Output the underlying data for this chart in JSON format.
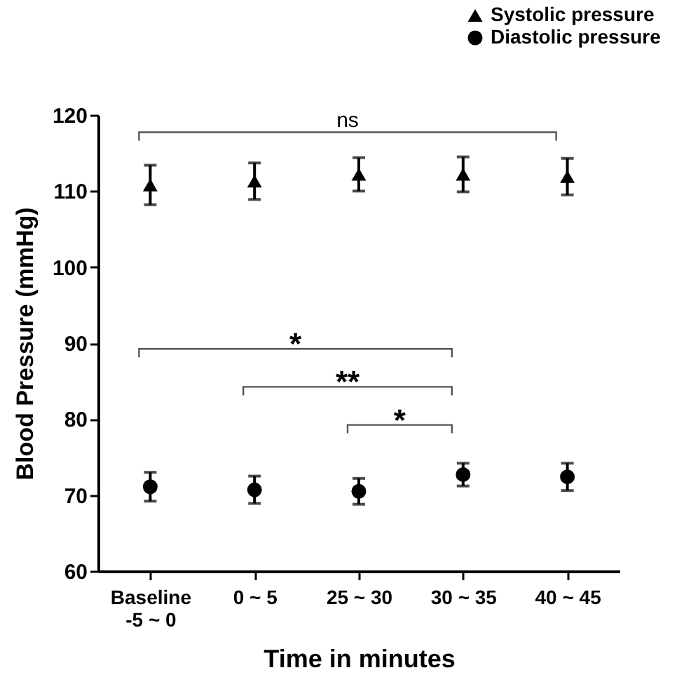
{
  "chart_data": {
    "type": "scatter",
    "xlabel": "Time in minutes",
    "ylabel": "Blood Pressure (mmHg)",
    "categories": [
      "Baseline\n-5 ~ 0",
      "0 ~ 5",
      "25 ~ 30",
      "30 ~ 35",
      "40 ~ 45"
    ],
    "series": [
      {
        "name": "Systolic pressure",
        "color": "#000000",
        "marker": "triangle",
        "values": [
          110.8,
          111.3,
          112.2,
          112.2,
          111.9
        ],
        "errors": [
          2.6,
          2.4,
          2.2,
          2.3,
          2.4
        ]
      },
      {
        "name": "Diastolic pressure",
        "color": "#000000",
        "marker": "circle",
        "values": [
          71.1,
          70.7,
          70.5,
          72.7,
          72.4
        ],
        "errors": [
          1.9,
          1.8,
          1.7,
          1.5,
          1.8
        ]
      }
    ],
    "ylim": [
      60,
      120
    ],
    "yticks": [
      60,
      70,
      80,
      90,
      100,
      110,
      120
    ],
    "grid": false,
    "legend": "top right",
    "annotations": [
      "ns",
      "*",
      "**",
      "*"
    ]
  }
}
